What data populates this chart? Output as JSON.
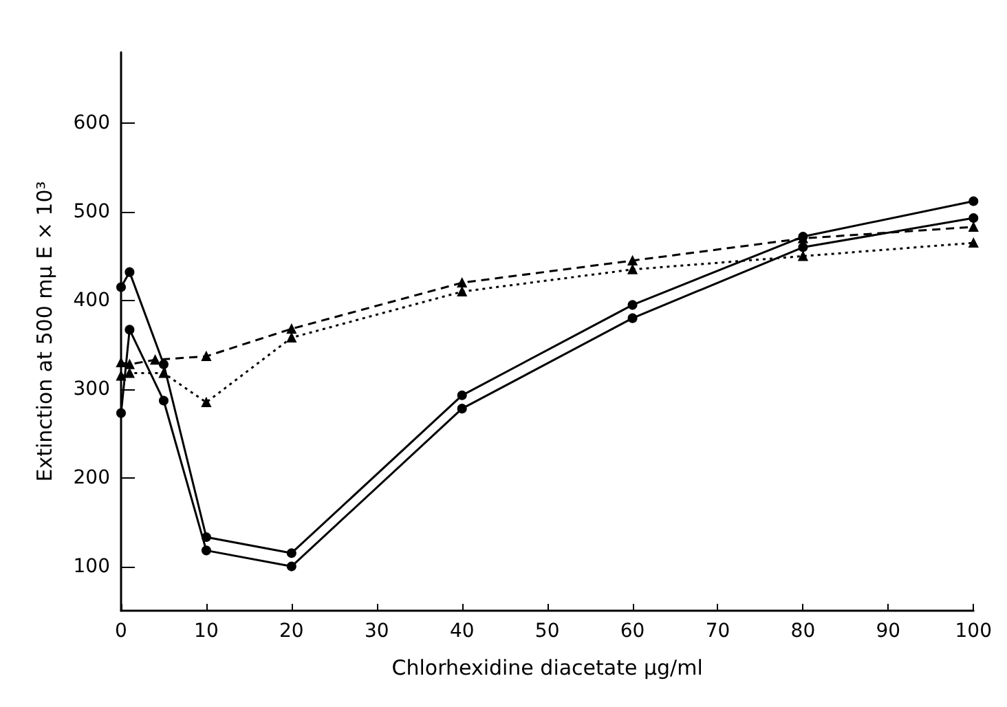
{
  "chart_data": {
    "type": "line",
    "xlabel": "Chlorhexidine diacetate μg/ml",
    "ylabel": "Extinction at 500 mμ E × 10³",
    "xlim": [
      0,
      100
    ],
    "ylim": [
      50,
      680
    ],
    "xticks": [
      0,
      10,
      20,
      30,
      40,
      50,
      60,
      70,
      80,
      90,
      100
    ],
    "yticks": [
      100,
      200,
      300,
      400,
      500,
      600
    ],
    "grid": false,
    "series": [
      {
        "color": "#000000",
        "marker": "circle",
        "line_style": "solid",
        "x": [
          0,
          1,
          5,
          10,
          20,
          40,
          60,
          80,
          100
        ],
        "values": [
          415,
          432,
          328,
          133,
          115,
          293,
          395,
          472,
          512
        ]
      },
      {
        "color": "#000000",
        "marker": "circle",
        "line_style": "solid",
        "x": [
          0,
          1,
          5,
          10,
          20,
          40,
          60,
          80,
          100
        ],
        "values": [
          273,
          367,
          287,
          118,
          100,
          278,
          380,
          460,
          493
        ]
      },
      {
        "color": "#000000",
        "marker": "triangle",
        "line_style": "dashed",
        "x": [
          0,
          1,
          4,
          10,
          20,
          40,
          60,
          80,
          100
        ],
        "values": [
          330,
          328,
          333,
          337,
          368,
          420,
          445,
          470,
          483
        ]
      },
      {
        "color": "#000000",
        "marker": "triangle",
        "line_style": "dotted",
        "x": [
          0,
          1,
          5,
          10,
          20,
          40,
          60,
          80,
          100
        ],
        "values": [
          315,
          318,
          318,
          285,
          358,
          410,
          435,
          450,
          465
        ]
      }
    ]
  }
}
